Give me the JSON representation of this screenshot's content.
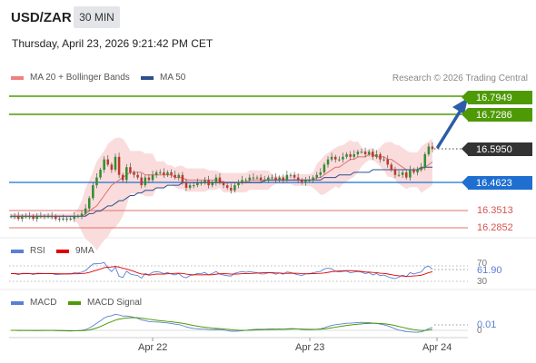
{
  "header": {
    "pair": "USD/ZAR",
    "interval": "30 MIN",
    "timestamp": "Thursday, April 23, 2026 9:21:42 PM CET"
  },
  "legend": {
    "ma20_label": "MA 20 + Bollinger Bands",
    "ma50_label": "MA 50",
    "copyright": "Research © 2026 Trading Central"
  },
  "colors": {
    "ma20": "#f08080",
    "ma50": "#2d4f8e",
    "resistance": "#4e9a06",
    "support": "#1f6fd1",
    "lower_support": "#d9534f",
    "bullish": "#2f8f2f",
    "bearish": "#c0392b",
    "rsi": "#5a7fd4",
    "rsi_ma": "#e00000",
    "macd": "#5a7fd4",
    "macd_signal": "#4e9a06"
  },
  "levels": {
    "r2": "16.7949",
    "r1": "16.7286",
    "last": "16.5950",
    "pivot": "16.4623",
    "s1": "16.3513",
    "s2": "16.2852"
  },
  "rsi": {
    "label": "RSI",
    "ma_label": "9MA",
    "value": "61.90",
    "upper": "70",
    "lower": "30"
  },
  "macd": {
    "label": "MACD",
    "signal_label": "MACD Signal",
    "value": "0.01",
    "zero": "0"
  },
  "x_axis": {
    "labels": [
      "Apr 22",
      "Apr 23",
      "Apr 24"
    ]
  },
  "chart_data": {
    "type": "candlestick",
    "title": "USD/ZAR",
    "ylabel": "",
    "ylim": [
      16.27,
      16.86
    ],
    "grid": false,
    "x_ticks": [
      "Apr 22",
      "Apr 23",
      "Apr 24"
    ],
    "series": [
      {
        "name": "Price close",
        "values": [
          16.33,
          16.33,
          16.32,
          16.33,
          16.33,
          16.33,
          16.32,
          16.33,
          16.33,
          16.33,
          16.33,
          16.33,
          16.32,
          16.32,
          16.32,
          16.32,
          16.32,
          16.33,
          16.33,
          16.34,
          16.36,
          16.4,
          16.45,
          16.48,
          16.51,
          16.55,
          16.53,
          16.51,
          16.56,
          16.49,
          16.47,
          16.52,
          16.5,
          16.49,
          16.48,
          16.45,
          16.48,
          16.47,
          16.49,
          16.5,
          16.5,
          16.49,
          16.5,
          16.49,
          16.48,
          16.49,
          16.46,
          16.44,
          16.45,
          16.45,
          16.46,
          16.46,
          16.47,
          16.45,
          16.46,
          16.48,
          16.46,
          16.45,
          16.44,
          16.43,
          16.45,
          16.46,
          16.47,
          16.47,
          16.48,
          16.48,
          16.48,
          16.47,
          16.47,
          16.48,
          16.48,
          16.47,
          16.48,
          16.47,
          16.49,
          16.49,
          16.48,
          16.47,
          16.46,
          16.47,
          16.47,
          16.48,
          16.49,
          16.5,
          16.53,
          16.55,
          16.56,
          16.55,
          16.55,
          16.56,
          16.57,
          16.56,
          16.57,
          16.58,
          16.58,
          16.57,
          16.58,
          16.56,
          16.57,
          16.55,
          16.55,
          16.53,
          16.51,
          16.49,
          16.49,
          16.5,
          16.48,
          16.51,
          16.5,
          16.51,
          16.52,
          16.57,
          16.6,
          16.59
        ]
      },
      {
        "name": "MA 20",
        "values": [
          16.33,
          16.33,
          16.33,
          16.33,
          16.33,
          16.33,
          16.33,
          16.33,
          16.33,
          16.33,
          16.33,
          16.33,
          16.33,
          16.33,
          16.33,
          16.33,
          16.33,
          16.33,
          16.33,
          16.33,
          16.34,
          16.35,
          16.36,
          16.37,
          16.39,
          16.41,
          16.43,
          16.45,
          16.46,
          16.47,
          16.48,
          16.49,
          16.5,
          16.5,
          16.5,
          16.5,
          16.49,
          16.49,
          16.49,
          16.49,
          16.49,
          16.49,
          16.49,
          16.49,
          16.48,
          16.48,
          16.48,
          16.47,
          16.47,
          16.47,
          16.47,
          16.47,
          16.47,
          16.47,
          16.47,
          16.47,
          16.47,
          16.46,
          16.46,
          16.46,
          16.46,
          16.46,
          16.46,
          16.46,
          16.47,
          16.47,
          16.47,
          16.47,
          16.47,
          16.47,
          16.47,
          16.47,
          16.47,
          16.47,
          16.47,
          16.47,
          16.47,
          16.47,
          16.47,
          16.47,
          16.47,
          16.47,
          16.48,
          16.48,
          16.49,
          16.5,
          16.51,
          16.52,
          16.52,
          16.53,
          16.54,
          16.55,
          16.55,
          16.56,
          16.56,
          16.56,
          16.57,
          16.57,
          16.56,
          16.56,
          16.56,
          16.55,
          16.55,
          16.54,
          16.53,
          16.52,
          16.51,
          16.51,
          16.51,
          16.51,
          16.51,
          16.52,
          16.53,
          16.54
        ]
      },
      {
        "name": "MA 50",
        "values": [
          16.33,
          16.33,
          16.33,
          16.33,
          16.33,
          16.33,
          16.33,
          16.33,
          16.33,
          16.33,
          16.33,
          16.33,
          16.33,
          16.33,
          16.33,
          16.33,
          16.33,
          16.33,
          16.33,
          16.33,
          16.33,
          16.34,
          16.34,
          16.35,
          16.35,
          16.36,
          16.37,
          16.37,
          16.38,
          16.39,
          16.39,
          16.4,
          16.41,
          16.41,
          16.42,
          16.42,
          16.43,
          16.43,
          16.43,
          16.44,
          16.44,
          16.44,
          16.45,
          16.45,
          16.45,
          16.45,
          16.46,
          16.46,
          16.46,
          16.46,
          16.46,
          16.46,
          16.46,
          16.46,
          16.46,
          16.46,
          16.46,
          16.46,
          16.46,
          16.46,
          16.46,
          16.46,
          16.46,
          16.46,
          16.46,
          16.46,
          16.46,
          16.46,
          16.47,
          16.47,
          16.47,
          16.47,
          16.47,
          16.47,
          16.47,
          16.47,
          16.47,
          16.47,
          16.47,
          16.47,
          16.47,
          16.47,
          16.47,
          16.47,
          16.48,
          16.48,
          16.48,
          16.48,
          16.49,
          16.49,
          16.49,
          16.49,
          16.5,
          16.5,
          16.5,
          16.5,
          16.5,
          16.51,
          16.51,
          16.51,
          16.51,
          16.51,
          16.51,
          16.51,
          16.51,
          16.51,
          16.51,
          16.51,
          16.51,
          16.51,
          16.52,
          16.52,
          16.52,
          16.52
        ]
      }
    ]
  }
}
